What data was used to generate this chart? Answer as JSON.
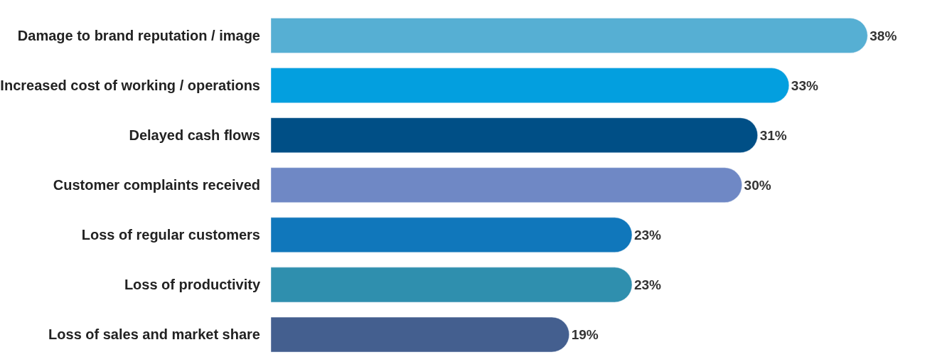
{
  "chart_data": {
    "type": "bar",
    "orientation": "horizontal",
    "categories": [
      "Damage to brand reputation / image",
      "Increased cost of working / operations",
      "Delayed cash flows",
      "Customer complaints received",
      "Loss of regular customers",
      "Loss of productivity",
      "Loss of sales and market share"
    ],
    "values": [
      38,
      33,
      31,
      30,
      23,
      23,
      19
    ],
    "value_labels": [
      "38%",
      "33%",
      "31%",
      "30%",
      "23%",
      "23%",
      "19%"
    ],
    "colors": [
      "#56afd3",
      "#039fdf",
      "#004f86",
      "#6f88c5",
      "#1077bb",
      "#2f8fae",
      "#445f8f"
    ]
  }
}
